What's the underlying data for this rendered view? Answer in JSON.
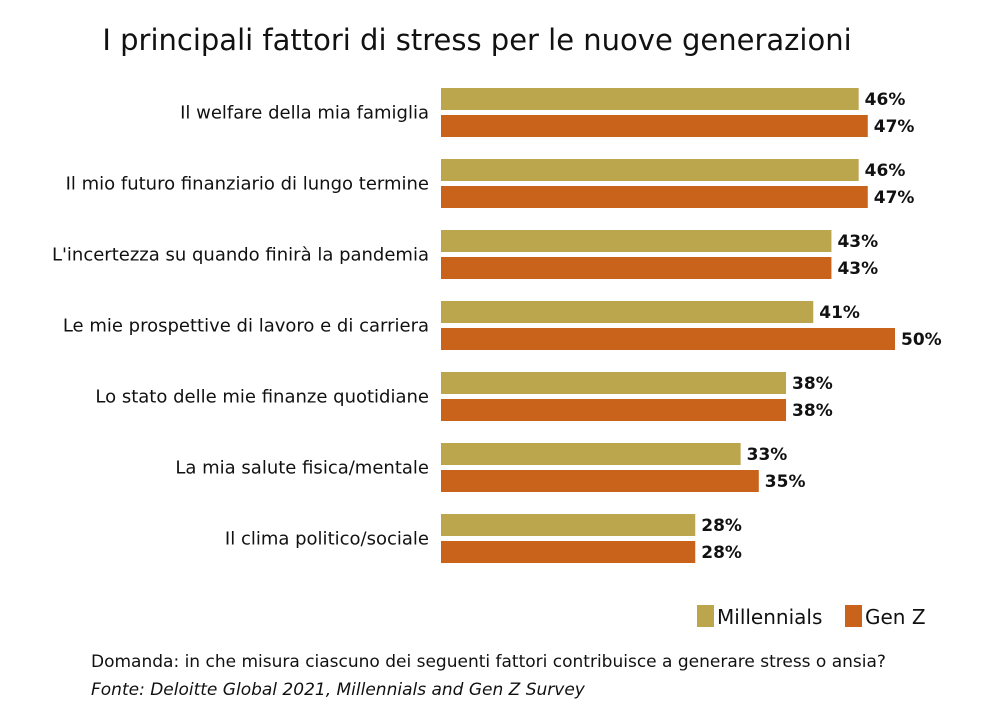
{
  "chart_data": {
    "type": "bar",
    "orientation": "horizontal",
    "title": "I principali fattori di stress per le nuove generazioni",
    "categories": [
      "Il welfare della mia famiglia",
      "Il mio futuro finanziario di lungo termine",
      "L'incertezza su quando finirà la pandemia",
      "Le mie prospettive di lavoro e di carriera",
      "Lo stato delle mie finanze quotidiane",
      "La mia salute fisica/mentale",
      "Il clima politico/sociale"
    ],
    "series": [
      {
        "name": "Millennials",
        "color": "#BBA54D",
        "values": [
          46,
          46,
          43,
          41,
          38,
          33,
          28
        ]
      },
      {
        "name": "Gen Z",
        "color": "#C9621A",
        "values": [
          47,
          47,
          43,
          50,
          38,
          35,
          28
        ]
      }
    ],
    "value_suffix": "%",
    "legend_position": "bottom-right",
    "grid": false
  },
  "footer": {
    "question": "Domanda: in che misura ciascuno dei seguenti fattori contribuisce a generare stress o ansia?",
    "source": "Fonte: Deloitte Global 2021, Millennials and Gen Z Survey"
  }
}
